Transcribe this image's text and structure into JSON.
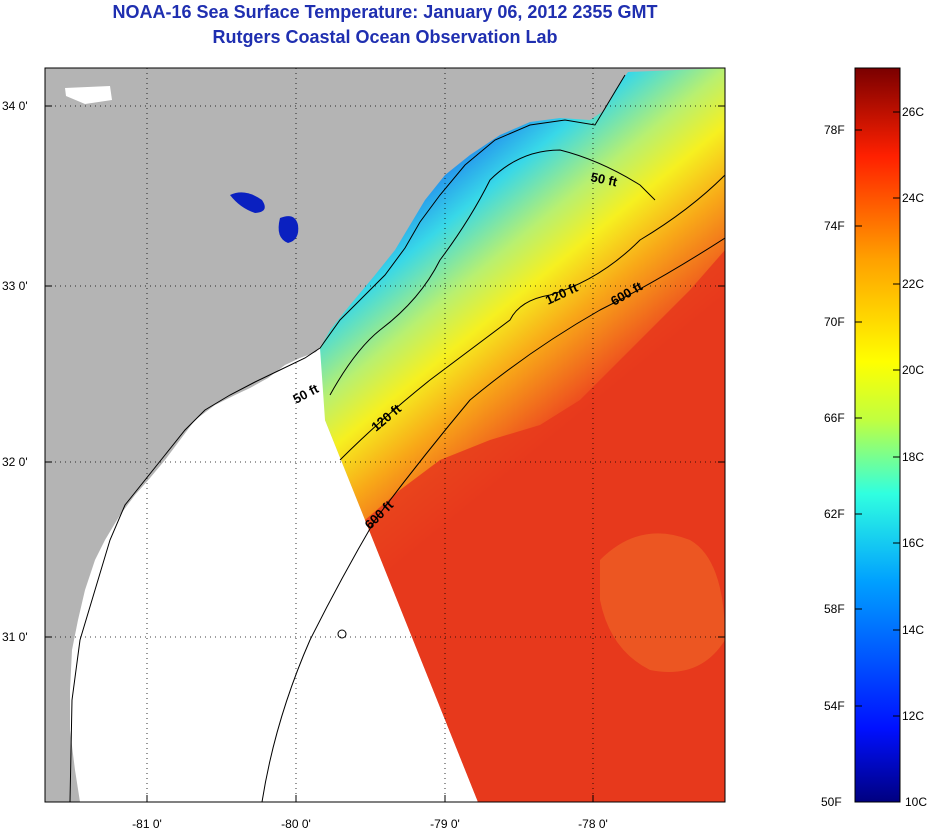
{
  "header": {
    "title": "NOAA-16 Sea Surface Temperature:  January 06, 2012 2355 GMT",
    "subtitle": "Rutgers Coastal Ocean Observation Lab"
  },
  "map": {
    "lat_labels": [
      "34 0'",
      "33 0'",
      "32 0'",
      "31 0'"
    ],
    "lon_labels": [
      "-81 0'",
      "-80 0'",
      "-79 0'",
      "-78 0'"
    ],
    "contour_labels": [
      "50 ft",
      "50 ft",
      "120 ft",
      "120 ft",
      "600 ft",
      "600 ft"
    ],
    "colors": {
      "land": "#b4b4b4",
      "no_data": "#ffffff",
      "warm_water": "#e8301a",
      "cool_water": "#0a28e0"
    }
  },
  "colorbar": {
    "fahrenheit_labels": [
      "78F",
      "74F",
      "70F",
      "66F",
      "62F",
      "58F",
      "54F",
      "50F"
    ],
    "celsius_labels": [
      "26C",
      "24C",
      "22C",
      "20C",
      "18C",
      "16C",
      "14C",
      "12C",
      "10C"
    ],
    "range_celsius": [
      10,
      27
    ],
    "colors": [
      "#000080",
      "#0010ff",
      "#00a0ff",
      "#30ffe0",
      "#c0ff40",
      "#ffff00",
      "#ffa000",
      "#ff2000",
      "#7a0000"
    ]
  }
}
